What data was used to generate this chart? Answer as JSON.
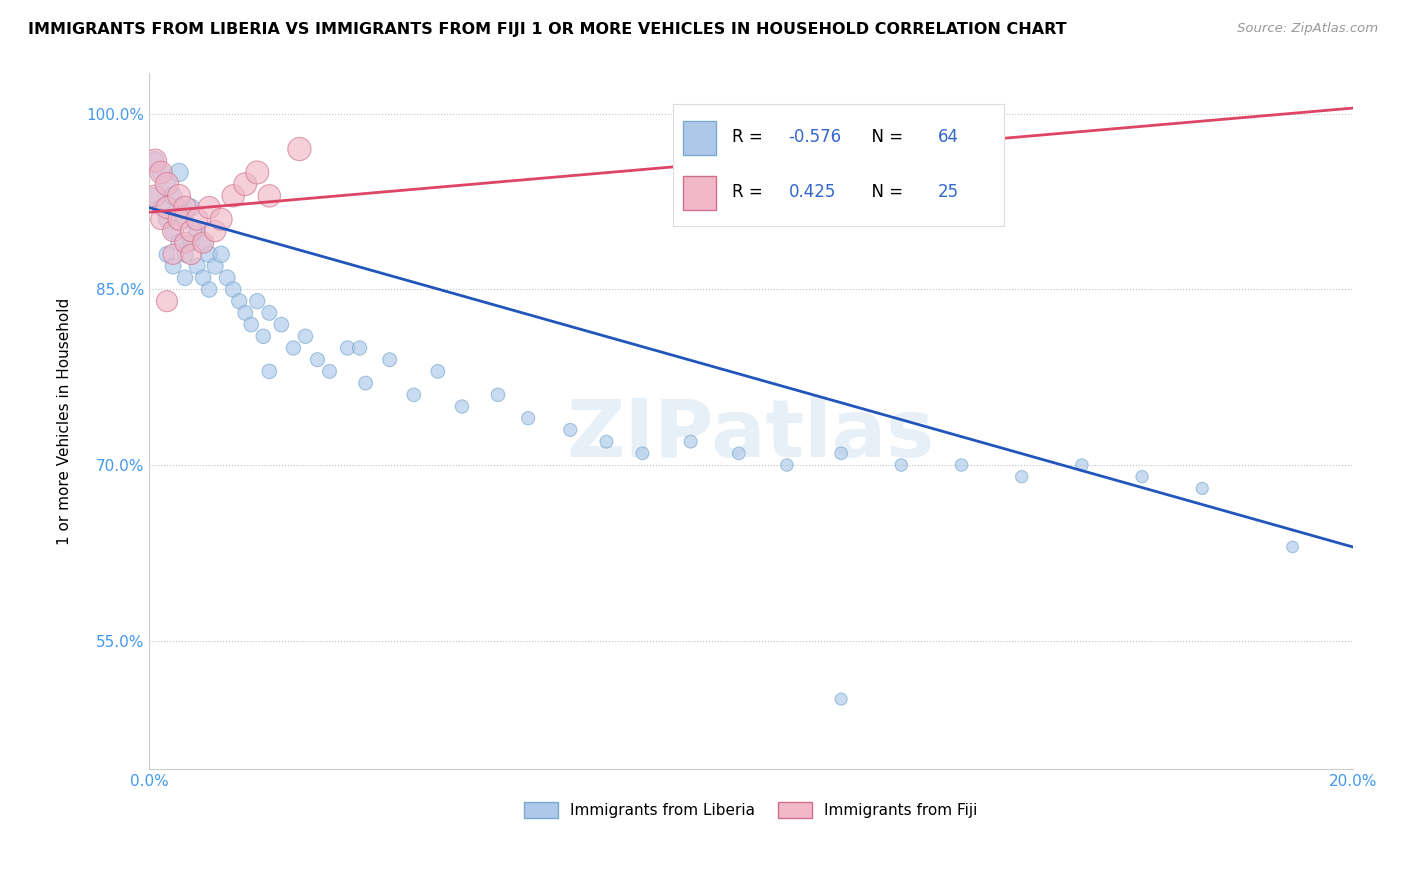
{
  "title": "IMMIGRANTS FROM LIBERIA VS IMMIGRANTS FROM FIJI 1 OR MORE VEHICLES IN HOUSEHOLD CORRELATION CHART",
  "source": "Source: ZipAtlas.com",
  "ylabel": "1 or more Vehicles in Household",
  "watermark": "ZIPatlas",
  "liberia_R": -0.576,
  "liberia_N": 64,
  "fiji_R": 0.425,
  "fiji_N": 25,
  "liberia_color": "#adc8e8",
  "liberia_edge_color": "#7aaad0",
  "fiji_color": "#f0b8c8",
  "fiji_edge_color": "#d0708c",
  "liberia_line_color": "#2255bb",
  "fiji_line_color": "#dd4466",
  "xlim": [
    0.0,
    0.2
  ],
  "ylim": [
    0.44,
    1.035
  ],
  "xticks": [
    0.0,
    0.05,
    0.1,
    0.15,
    0.2
  ],
  "xticklabels": [
    "0.0%",
    "",
    "",
    "",
    "20.0%"
  ],
  "yticks": [
    0.55,
    0.7,
    0.85,
    1.0
  ],
  "yticklabels": [
    "55.0%",
    "70.0%",
    "85.0%",
    "100.0%"
  ],
  "liberia_x": [
    0.001,
    0.001,
    0.002,
    0.002,
    0.003,
    0.003,
    0.003,
    0.004,
    0.004,
    0.004,
    0.005,
    0.005,
    0.005,
    0.006,
    0.006,
    0.006,
    0.007,
    0.007,
    0.008,
    0.008,
    0.009,
    0.009,
    0.01,
    0.01,
    0.011,
    0.012,
    0.013,
    0.014,
    0.015,
    0.016,
    0.017,
    0.018,
    0.019,
    0.02,
    0.022,
    0.024,
    0.026,
    0.028,
    0.03,
    0.033,
    0.036,
    0.04,
    0.044,
    0.048,
    0.052,
    0.058,
    0.063,
    0.07,
    0.076,
    0.082,
    0.09,
    0.098,
    0.106,
    0.115,
    0.125,
    0.135,
    0.145,
    0.155,
    0.165,
    0.175,
    0.02,
    0.035,
    0.19,
    0.115
  ],
  "liberia_y": [
    0.96,
    0.93,
    0.95,
    0.92,
    0.94,
    0.91,
    0.88,
    0.93,
    0.9,
    0.87,
    0.95,
    0.92,
    0.89,
    0.91,
    0.88,
    0.86,
    0.92,
    0.89,
    0.9,
    0.87,
    0.89,
    0.86,
    0.88,
    0.85,
    0.87,
    0.88,
    0.86,
    0.85,
    0.84,
    0.83,
    0.82,
    0.84,
    0.81,
    0.83,
    0.82,
    0.8,
    0.81,
    0.79,
    0.78,
    0.8,
    0.77,
    0.79,
    0.76,
    0.78,
    0.75,
    0.76,
    0.74,
    0.73,
    0.72,
    0.71,
    0.72,
    0.71,
    0.7,
    0.71,
    0.7,
    0.7,
    0.69,
    0.7,
    0.69,
    0.68,
    0.78,
    0.8,
    0.63,
    0.5
  ],
  "fiji_x": [
    0.001,
    0.001,
    0.002,
    0.002,
    0.003,
    0.003,
    0.004,
    0.004,
    0.005,
    0.005,
    0.006,
    0.006,
    0.007,
    0.007,
    0.008,
    0.009,
    0.01,
    0.011,
    0.012,
    0.014,
    0.016,
    0.018,
    0.02,
    0.025,
    0.003
  ],
  "fiji_y": [
    0.96,
    0.93,
    0.95,
    0.91,
    0.94,
    0.92,
    0.9,
    0.88,
    0.91,
    0.93,
    0.89,
    0.92,
    0.9,
    0.88,
    0.91,
    0.89,
    0.92,
    0.9,
    0.91,
    0.93,
    0.94,
    0.95,
    0.93,
    0.97,
    0.84
  ],
  "liberia_sizes": [
    180,
    150,
    160,
    140,
    170,
    150,
    130,
    160,
    145,
    130,
    175,
    155,
    140,
    150,
    135,
    125,
    155,
    140,
    145,
    130,
    140,
    125,
    140,
    125,
    135,
    140,
    130,
    125,
    120,
    115,
    110,
    120,
    108,
    115,
    110,
    105,
    108,
    102,
    100,
    105,
    98,
    100,
    95,
    98,
    92,
    95,
    90,
    88,
    85,
    83,
    86,
    83,
    80,
    82,
    80,
    80,
    78,
    80,
    78,
    76,
    110,
    105,
    70,
    75
  ],
  "fiji_sizes": [
    280,
    240,
    260,
    220,
    280,
    250,
    230,
    210,
    250,
    270,
    220,
    260,
    240,
    215,
    245,
    230,
    255,
    240,
    250,
    260,
    270,
    275,
    260,
    280,
    230
  ]
}
